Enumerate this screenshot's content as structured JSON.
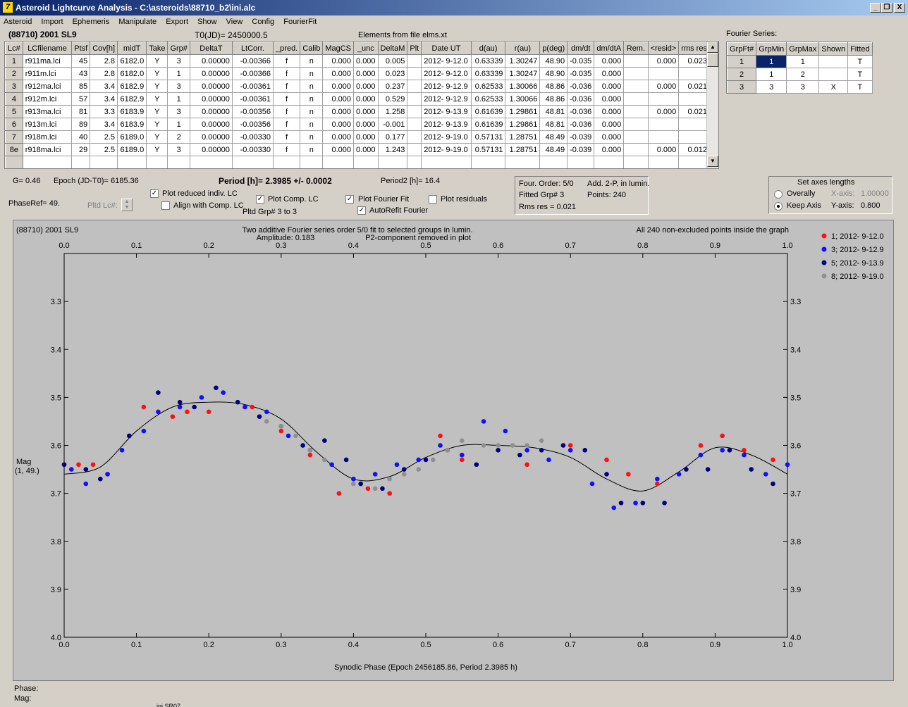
{
  "window": {
    "title": "Asteroid Lightcurve Analysis - C:\\asteroids\\88710_b2\\ini.alc",
    "icon_text": "7",
    "btn_min": "_",
    "btn_max": "❐",
    "btn_close": "X"
  },
  "menu": [
    "Asteroid",
    "Import",
    "Ephemeris",
    "Manipulate",
    "Export",
    "Show",
    "View",
    "Config",
    "FourierFit"
  ],
  "header": {
    "asteroid": "(88710) 2001 SL9",
    "t0": "T0(JD)= 2450000.5",
    "elements": "Elements from file elms.xt"
  },
  "table": {
    "columns": [
      "Lc#",
      "LCfilename",
      "Ptsf",
      "Cov[h]",
      "midT",
      "Take",
      "Grp#",
      "DeltaT",
      "LtCorr.",
      "_pred.",
      "Calib",
      "MagCS",
      "_unc",
      "DeltaM",
      "Plt",
      "Date UT",
      "d(au)",
      "r(au)",
      "p(deg)",
      "dm/dt",
      "dm/dtA",
      "Rem.",
      "<resid>",
      "rms res"
    ],
    "rows": [
      [
        "1",
        "r911ma.lci",
        "45",
        "2.8",
        "6182.0",
        "Y",
        "3",
        "0.00000",
        "-0.00366",
        "f",
        "n",
        "0.000",
        "0.000",
        "0.005",
        "",
        "2012- 9-12.0",
        "0.63339",
        "1.30247",
        "48.90",
        "-0.035",
        "0.000",
        "",
        "0.000",
        "0.023"
      ],
      [
        "2",
        "r911m.lci",
        "43",
        "2.8",
        "6182.0",
        "Y",
        "1",
        "0.00000",
        "-0.00366",
        "f",
        "n",
        "0.000",
        "0.000",
        "0.023",
        "",
        "2012- 9-12.0",
        "0.63339",
        "1.30247",
        "48.90",
        "-0.035",
        "0.000",
        "",
        "",
        ""
      ],
      [
        "3",
        "r912ma.lci",
        "85",
        "3.4",
        "6182.9",
        "Y",
        "3",
        "0.00000",
        "-0.00361",
        "f",
        "n",
        "0.000",
        "0.000",
        "0.237",
        "",
        "2012- 9-12.9",
        "0.62533",
        "1.30066",
        "48.86",
        "-0.036",
        "0.000",
        "",
        "0.000",
        "0.021"
      ],
      [
        "4",
        "r912m.lci",
        "57",
        "3.4",
        "6182.9",
        "Y",
        "1",
        "0.00000",
        "-0.00361",
        "f",
        "n",
        "0.000",
        "0.000",
        "0.529",
        "",
        "2012- 9-12.9",
        "0.62533",
        "1.30066",
        "48.86",
        "-0.036",
        "0.000",
        "",
        "",
        ""
      ],
      [
        "5",
        "r913ma.lci",
        "81",
        "3.3",
        "6183.9",
        "Y",
        "3",
        "0.00000",
        "-0.00356",
        "f",
        "n",
        "0.000",
        "0.000",
        "1.258",
        "",
        "2012- 9-13.9",
        "0.61639",
        "1.29861",
        "48.81",
        "-0.036",
        "0.000",
        "",
        "0.000",
        "0.021"
      ],
      [
        "6",
        "r913m.lci",
        "89",
        "3.4",
        "6183.9",
        "Y",
        "1",
        "0.00000",
        "-0.00356",
        "f",
        "n",
        "0.000",
        "0.000",
        "-0.001",
        "",
        "2012- 9-13.9",
        "0.61639",
        "1.29861",
        "48.81",
        "-0.036",
        "0.000",
        "",
        "",
        ""
      ],
      [
        "7",
        "r918m.lci",
        "40",
        "2.5",
        "6189.0",
        "Y",
        "2",
        "0.00000",
        "-0.00330",
        "f",
        "n",
        "0.000",
        "0.000",
        "0.177",
        "",
        "2012- 9-19.0",
        "0.57131",
        "1.28751",
        "48.49",
        "-0.039",
        "0.000",
        "",
        "",
        ""
      ],
      [
        "8e",
        "r918ma.lci",
        "29",
        "2.5",
        "6189.0",
        "Y",
        "3",
        "0.00000",
        "-0.00330",
        "f",
        "n",
        "0.000",
        "0.000",
        "1.243",
        "",
        "2012- 9-19.0",
        "0.57131",
        "1.28751",
        "48.49",
        "-0.039",
        "0.000",
        "",
        "0.000",
        "0.012"
      ]
    ]
  },
  "fourier_series": {
    "label": "Fourier Series:",
    "columns": [
      "GrpFt#",
      "GrpMin",
      "GrpMax",
      "Shown",
      "Fitted"
    ],
    "rows": [
      [
        "1",
        "1",
        "1",
        "",
        "T"
      ],
      [
        "2",
        "1",
        "2",
        "",
        "T"
      ],
      [
        "3",
        "3",
        "3",
        "X",
        "T"
      ]
    ]
  },
  "controls": {
    "g": "G= 0.46",
    "epoch": "Epoch (JD-T0)= 6185.36",
    "period": "Period [h]= 2.3985 +/- 0.0002",
    "period2": "Period2 [h]= 16.4",
    "phaseref": "PhaseRef= 49.",
    "pltd_lc": "Pltd Lc#:",
    "plot_reduced": "Plot reduced indiv. LC",
    "align_comp": "Align with Comp. LC",
    "plot_comp": "Plot Comp. LC",
    "pltd_grp": "Pltd Grp#  3  to   3",
    "plot_fourier": "Plot Fourier Fit",
    "autorefit": "AutoRefit Fourier",
    "plot_resid": "Plot residuals",
    "four_order": "Four. Order:  5/0",
    "add2p": "Add. 2-P, in lumin.",
    "fitted_grp": "Fitted Grp# 3",
    "points": "Points: 240",
    "rms": "Rms res     = 0.021",
    "axes_title": "Set axes lengths",
    "overally": "Overally",
    "keep_axis": "Keep Axis",
    "xaxis_lbl": "X-axis:",
    "xaxis_val": "1.00000",
    "yaxis_lbl": "Y-axis:",
    "yaxis_val": "0.800"
  },
  "chart_data": {
    "type": "scatter",
    "title": "(88710) 2001 SL9",
    "subtitle1": "Two additive Fourier series order 5/0 fit to selected groups in lumin.",
    "subtitle2": "Amplitude: 0.183",
    "subtitle3": "P2-component removed in plot",
    "note": "All 240 non-excluded points inside the graph",
    "xlabel": "Synodic Phase (Epoch 2456185.86, Period 2.3985 h)",
    "ylabel": "Mag",
    "ylabel2": "(1, 49.)",
    "xlim": [
      0.0,
      1.0
    ],
    "ylim": [
      3.2,
      4.0
    ],
    "y_inverted": true,
    "xticks": [
      "0.0",
      "0.1",
      "0.2",
      "0.3",
      "0.4",
      "0.5",
      "0.6",
      "0.7",
      "0.8",
      "0.9",
      "1.0"
    ],
    "yticks": [
      "3.3",
      "3.4",
      "3.5",
      "3.6",
      "3.7",
      "3.8",
      "3.9",
      "4.0"
    ],
    "legend_position": "top-right",
    "fit_curve": {
      "x": [
        0.0,
        0.05,
        0.1,
        0.15,
        0.2,
        0.25,
        0.3,
        0.35,
        0.4,
        0.45,
        0.5,
        0.55,
        0.6,
        0.65,
        0.7,
        0.75,
        0.8,
        0.85,
        0.9,
        0.95,
        1.0
      ],
      "y": [
        3.66,
        3.645,
        3.57,
        3.52,
        3.51,
        3.515,
        3.545,
        3.615,
        3.67,
        3.665,
        3.625,
        3.6,
        3.6,
        3.605,
        3.625,
        3.67,
        3.695,
        3.655,
        3.605,
        3.62,
        3.66
      ]
    },
    "series": [
      {
        "name": "1; 2012- 9-12.0",
        "color": "#ff1010",
        "x": [
          0.0,
          0.02,
          0.04,
          0.06,
          0.09,
          0.11,
          0.15,
          0.17,
          0.2,
          0.26,
          0.3,
          0.34,
          0.38,
          0.42,
          0.45,
          0.52,
          0.55,
          0.64,
          0.7,
          0.75,
          0.78,
          0.82,
          0.88,
          0.91,
          0.94,
          0.98
        ],
        "y": [
          3.64,
          3.64,
          3.64,
          3.66,
          3.58,
          3.52,
          3.54,
          3.53,
          3.53,
          3.52,
          3.57,
          3.62,
          3.7,
          3.69,
          3.7,
          3.58,
          3.63,
          3.64,
          3.6,
          3.63,
          3.66,
          3.68,
          3.6,
          3.58,
          3.61,
          3.63
        ]
      },
      {
        "name": "3; 2012- 9-12.9",
        "color": "#1010ff",
        "x": [
          0.01,
          0.03,
          0.06,
          0.08,
          0.11,
          0.13,
          0.16,
          0.19,
          0.22,
          0.25,
          0.28,
          0.31,
          0.34,
          0.37,
          0.4,
          0.43,
          0.46,
          0.49,
          0.52,
          0.55,
          0.58,
          0.61,
          0.64,
          0.67,
          0.7,
          0.73,
          0.76,
          0.79,
          0.82,
          0.85,
          0.88,
          0.91,
          0.94,
          0.97,
          1.0
        ],
        "y": [
          3.65,
          3.68,
          3.66,
          3.61,
          3.57,
          3.53,
          3.52,
          3.5,
          3.49,
          3.52,
          3.53,
          3.58,
          3.61,
          3.64,
          3.67,
          3.66,
          3.64,
          3.63,
          3.6,
          3.62,
          3.55,
          3.57,
          3.61,
          3.63,
          3.61,
          3.68,
          3.73,
          3.72,
          3.67,
          3.66,
          3.62,
          3.61,
          3.62,
          3.66,
          3.64
        ]
      },
      {
        "name": "5; 2012- 9-13.9",
        "color": "#000080",
        "x": [
          0.0,
          0.03,
          0.05,
          0.09,
          0.13,
          0.16,
          0.18,
          0.21,
          0.24,
          0.27,
          0.3,
          0.33,
          0.36,
          0.39,
          0.41,
          0.44,
          0.47,
          0.5,
          0.53,
          0.57,
          0.6,
          0.63,
          0.66,
          0.69,
          0.72,
          0.75,
          0.77,
          0.8,
          0.83,
          0.86,
          0.89,
          0.92,
          0.95,
          0.98
        ],
        "y": [
          3.64,
          3.65,
          3.67,
          3.58,
          3.49,
          3.51,
          3.52,
          3.48,
          3.51,
          3.54,
          3.56,
          3.6,
          3.59,
          3.63,
          3.68,
          3.69,
          3.65,
          3.63,
          3.61,
          3.64,
          3.61,
          3.62,
          3.61,
          3.6,
          3.61,
          3.66,
          3.72,
          3.72,
          3.72,
          3.65,
          3.65,
          3.61,
          3.65,
          3.68
        ]
      },
      {
        "name": "8; 2012- 9-19.0",
        "color": "#909090",
        "x": [
          0.28,
          0.3,
          0.32,
          0.34,
          0.36,
          0.4,
          0.43,
          0.45,
          0.47,
          0.49,
          0.51,
          0.53,
          0.55,
          0.58,
          0.6,
          0.62,
          0.64,
          0.66
        ],
        "y": [
          3.55,
          3.56,
          3.58,
          3.61,
          3.63,
          3.68,
          3.69,
          3.67,
          3.66,
          3.65,
          3.63,
          3.61,
          3.59,
          3.6,
          3.6,
          3.6,
          3.6,
          3.59
        ]
      }
    ]
  },
  "status": {
    "phase": "Phase:",
    "mag": "Mag:",
    "bottom_text": "ini.SR07"
  }
}
